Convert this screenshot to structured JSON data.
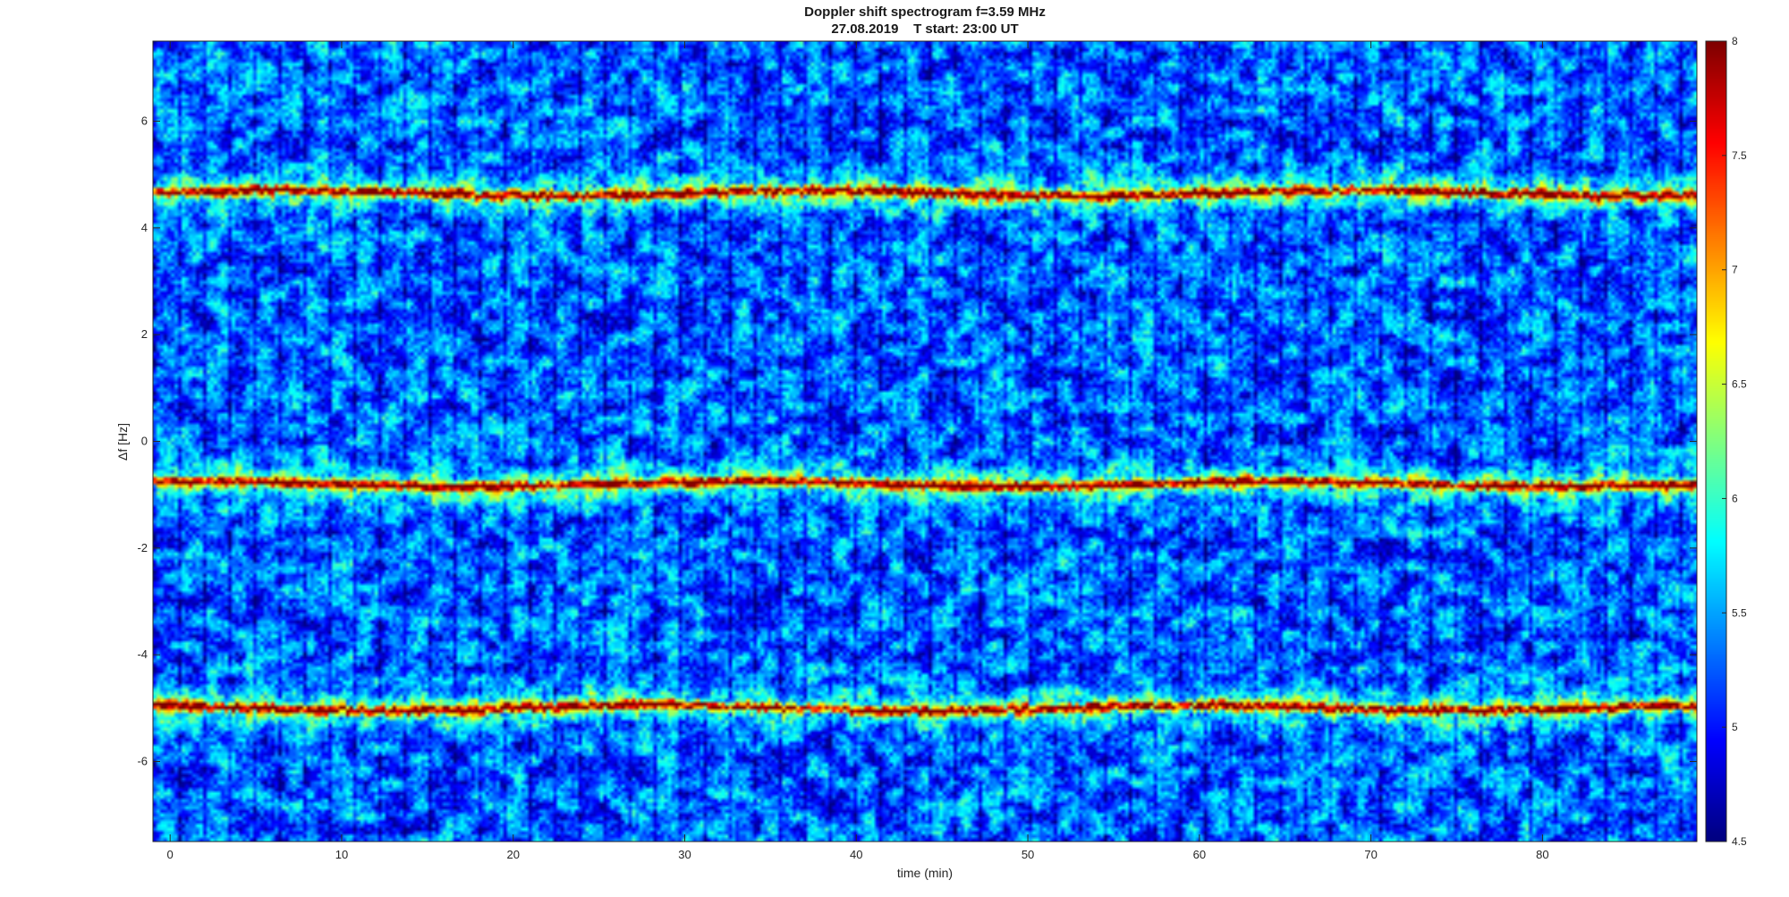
{
  "chart_data": {
    "type": "heatmap",
    "title": "Doppler shift spectrogram f=3.59 MHz",
    "subtitle": "27.08.2019    T start: 23:00 UT",
    "xlabel": "time (min)",
    "ylabel": "Δf [Hz]",
    "xlim": [
      -1,
      89
    ],
    "ylim": [
      -7.5,
      7.5
    ],
    "xticks": [
      0,
      10,
      20,
      30,
      40,
      50,
      60,
      70,
      80
    ],
    "yticks": [
      -6,
      -4,
      -2,
      0,
      2,
      4,
      6
    ],
    "colorbar": {
      "colormap": "jet",
      "clim": [
        4.5,
        8
      ],
      "ticks": [
        4.5,
        5,
        5.5,
        6,
        6.5,
        7,
        7.5,
        8
      ],
      "tick_labels": [
        "4.5",
        "5",
        "5.5",
        "6",
        "6.5",
        "7",
        "7.5",
        "8"
      ]
    },
    "bands": [
      {
        "center_hz": 4.65,
        "intensity_peak": 7.8
      },
      {
        "center_hz": -0.8,
        "intensity_peak": 7.8
      },
      {
        "center_hz": -5.0,
        "intensity_peak": 7.8
      }
    ],
    "background_intensity": 5.3,
    "grid": false
  }
}
